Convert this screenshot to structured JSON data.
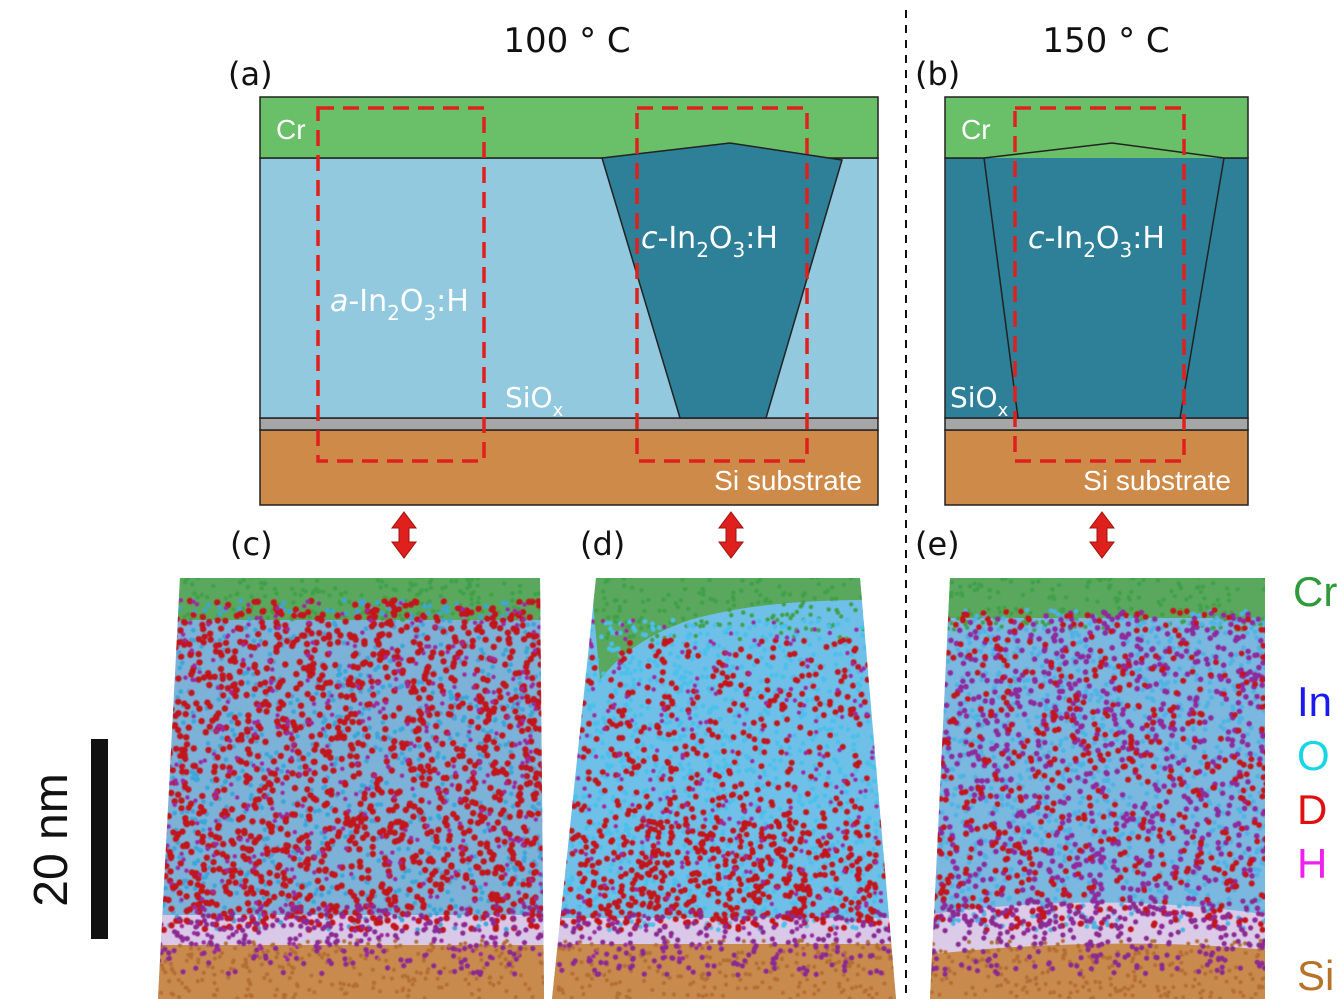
{
  "figure": {
    "temp_left": "100 ° C",
    "temp_right": "150 ° C",
    "panels": [
      "(a)",
      "(b)",
      "(c)",
      "(d)",
      "(e)"
    ]
  },
  "schematic": {
    "cr": "Cr",
    "amorphous": {
      "prefix": "a",
      "main": "-In",
      "sub1": "2",
      "mid": "O",
      "sub2": "3",
      "tail": ":H"
    },
    "crystalline": {
      "prefix": "c",
      "main": "-In",
      "sub1": "2",
      "mid": "O",
      "sub2": "3",
      "tail": ":H"
    },
    "siox": {
      "main": "SiO",
      "sub": "x"
    },
    "substrate": "Si substrate"
  },
  "scalebar": {
    "label": "20 nm"
  },
  "legend": {
    "items": [
      {
        "text": "Cr",
        "color": "#2e9a3a"
      },
      {
        "text": "In",
        "color": "#1a1aee"
      },
      {
        "text": "O",
        "color": "#19d6e6"
      },
      {
        "text": "D",
        "color": "#e01010"
      },
      {
        "text": "H",
        "color": "#ee22ee"
      },
      {
        "text": "Si",
        "color": "#b8732a"
      }
    ]
  },
  "colors": {
    "cr": "#6abf69",
    "amorphous": "#92c9de",
    "crystalline": "#2e7f98",
    "siox": "#a6a6a6",
    "substrate": "#cd8a48",
    "roi": "#e0201c"
  }
}
